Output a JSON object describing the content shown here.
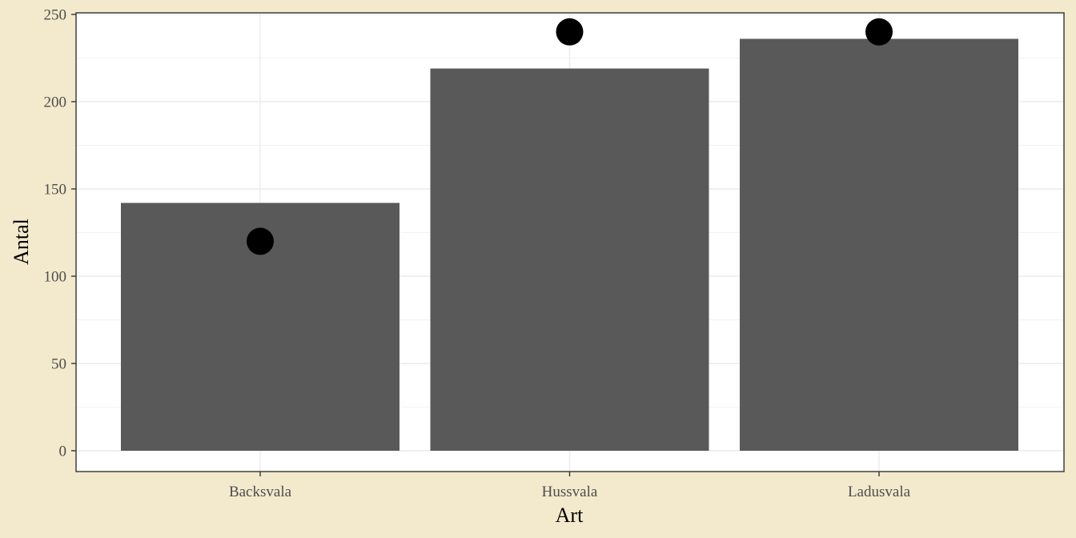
{
  "chart_data": {
    "type": "bar",
    "categories": [
      "Backsvala",
      "Hussvala",
      "Ladusvala"
    ],
    "series": [
      {
        "type": "bar",
        "values": [
          142,
          219,
          236
        ]
      },
      {
        "type": "point",
        "values": [
          120,
          240,
          240
        ]
      }
    ],
    "xlabel": "Art",
    "ylabel": "Antal",
    "ylim": [
      0,
      250
    ],
    "yticks": [
      0,
      50,
      100,
      150,
      200,
      250
    ],
    "grid": true,
    "colors": {
      "page_background": "#f3e9cc",
      "panel_background": "#ffffff",
      "bar_fill": "#595959",
      "point_fill": "#000000",
      "grid_major": "#ebebeb",
      "grid_minor": "#f2f2f2",
      "axis_line": "#333333"
    }
  }
}
